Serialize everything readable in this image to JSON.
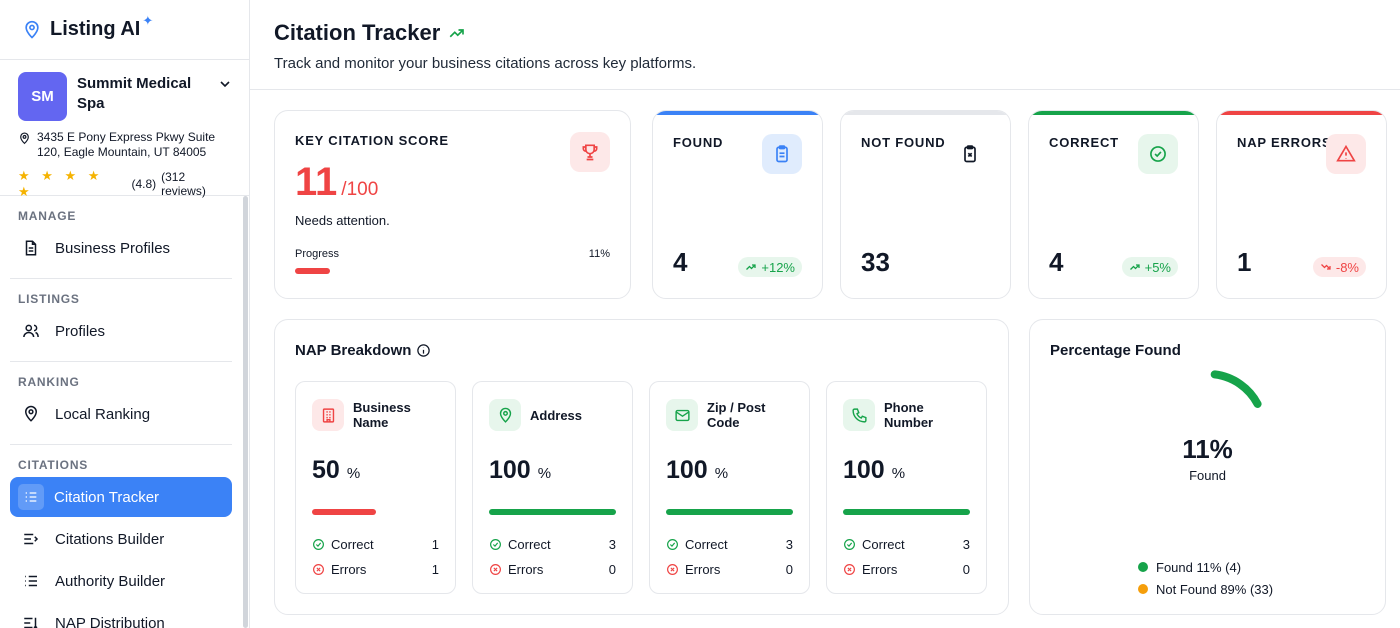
{
  "app": {
    "name": "Listing AI"
  },
  "business": {
    "initials": "SM",
    "name": "Summit Medical Spa",
    "address": "3435 E Pony Express Pkwy Suite 120, Eagle Mountain, UT 84005",
    "stars": "★ ★ ★ ★ ★",
    "rating": "(4.8)",
    "reviews": "(312 reviews)"
  },
  "sidebar": {
    "sections": [
      {
        "title": "MANAGE",
        "items": [
          {
            "label": "Business Profiles",
            "icon": "document-icon"
          }
        ]
      },
      {
        "title": "LISTINGS",
        "items": [
          {
            "label": "Profiles",
            "icon": "users-icon"
          }
        ]
      },
      {
        "title": "RANKING",
        "items": [
          {
            "label": "Local Ranking",
            "icon": "location-icon"
          }
        ]
      },
      {
        "title": "CITATIONS",
        "items": [
          {
            "label": "Citation Tracker",
            "icon": "list-check-icon",
            "active": true
          },
          {
            "label": "Citations Builder",
            "icon": "list-arrow-icon"
          },
          {
            "label": "Authority Builder",
            "icon": "list-icon"
          },
          {
            "label": "NAP Distribution",
            "icon": "list-sort-icon"
          }
        ]
      }
    ]
  },
  "header": {
    "title": "Citation Tracker",
    "subtitle": "Track and monitor your business citations across key platforms."
  },
  "score": {
    "label": "KEY CITATION SCORE",
    "value": "11",
    "denominator": "/100",
    "status": "Needs attention.",
    "progress_label": "Progress",
    "progress_text": "11%",
    "progress": 0.11
  },
  "stats": [
    {
      "label": "FOUND",
      "value": "4",
      "delta": "+12%",
      "color": "#3b82f6"
    },
    {
      "label": "NOT FOUND",
      "value": "33",
      "delta": "",
      "color": "#d1d5db"
    },
    {
      "label": "CORRECT",
      "value": "4",
      "delta": "+5%",
      "color": "#16a34a"
    },
    {
      "label": "NAP ERRORS",
      "value": "1",
      "delta": "-8%",
      "color": "#ef4444"
    }
  ],
  "nap": {
    "title": "NAP Breakdown",
    "items": [
      {
        "name": "Business Name",
        "percent": "50",
        "unit": "%",
        "correct_label": "Correct",
        "correct": "1",
        "errors_label": "Errors",
        "errors": "1",
        "fill": 0.5,
        "color": "#ef4444"
      },
      {
        "name": "Address",
        "percent": "100",
        "unit": "%",
        "correct_label": "Correct",
        "correct": "3",
        "errors_label": "Errors",
        "errors": "0",
        "fill": 1.0,
        "color": "#16a34a"
      },
      {
        "name": "Zip / Post Code",
        "percent": "100",
        "unit": "%",
        "correct_label": "Correct",
        "correct": "3",
        "errors_label": "Errors",
        "errors": "0",
        "fill": 1.0,
        "color": "#16a34a"
      },
      {
        "name": "Phone Number",
        "percent": "100",
        "unit": "%",
        "correct_label": "Correct",
        "correct": "3",
        "errors_label": "Errors",
        "errors": "0",
        "fill": 1.0,
        "color": "#16a34a"
      }
    ]
  },
  "percentage": {
    "title": "Percentage Found",
    "value": "11%",
    "caption": "Found",
    "legend": [
      {
        "label": "Found 11% (4)",
        "color": "#16a34a"
      },
      {
        "label": "Not Found 89% (33)",
        "color": "#f59e0b"
      }
    ],
    "found_fraction": 0.11
  }
}
